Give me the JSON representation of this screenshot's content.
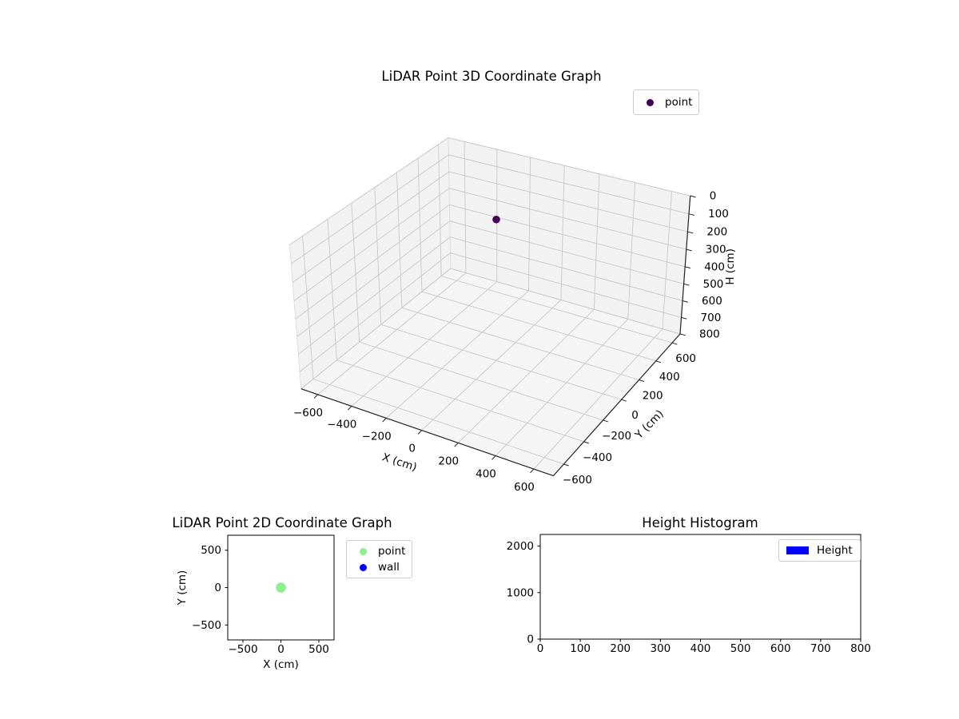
{
  "figure": {
    "background": "#ffffff",
    "description": "Figure with three subplots"
  },
  "colors": {
    "point3d": "#440154",
    "point2d": "#90ee90",
    "wall": "#0000ff",
    "height_bar": "#0000ff",
    "pane_wall": "#f2f2f2",
    "pane_floor": "#f5f5f5",
    "grid3d": "#c8c8c8",
    "pane_edge": "#dcdcdc",
    "axis_line": "#222222",
    "spine": "#000000",
    "legend_border": "#cccccc"
  },
  "chart_data": [
    {
      "type": "scatter3d",
      "title": "LiDAR Point 3D Coordinate Graph",
      "xlabel": "X (cm)",
      "ylabel": "Y (cm)",
      "zlabel": "H (cm)",
      "xlim": [
        -700,
        700
      ],
      "ylim": [
        -700,
        700
      ],
      "zlim": [
        0,
        800
      ],
      "zaxis_inverted": true,
      "xticks": [
        -600,
        -400,
        -200,
        0,
        200,
        400,
        600
      ],
      "yticks": [
        -600,
        -400,
        -200,
        0,
        200,
        400,
        600
      ],
      "zticks": [
        0,
        100,
        200,
        300,
        400,
        500,
        600,
        700,
        800
      ],
      "grid": true,
      "view": {
        "elev": 30,
        "azim": -60
      },
      "series": [
        {
          "name": "point",
          "color": "#440154",
          "marker": "circle",
          "points": [
            {
              "x": 0,
              "y": 0,
              "h": 0
            }
          ]
        }
      ],
      "legend": {
        "position": "upper-right",
        "entries": [
          {
            "label": "point",
            "color": "#440154",
            "marker": "circle"
          }
        ]
      }
    },
    {
      "type": "scatter",
      "title": "LiDAR Point 2D Coordinate Graph",
      "xlabel": "X (cm)",
      "ylabel": "Y (cm)",
      "xlim": [
        -700,
        700
      ],
      "ylim": [
        -700,
        700
      ],
      "xticks": [
        -500,
        0,
        500
      ],
      "yticks": [
        -500,
        0,
        500
      ],
      "grid": false,
      "series": [
        {
          "name": "point",
          "color": "#90ee90",
          "marker": "circle",
          "points": [
            {
              "x": 0,
              "y": 0
            }
          ]
        },
        {
          "name": "wall",
          "color": "#0000ff",
          "marker": "circle",
          "points": []
        }
      ],
      "legend": {
        "position": "outside-right",
        "entries": [
          {
            "label": "point",
            "color": "#90ee90",
            "marker": "circle"
          },
          {
            "label": "wall",
            "color": "#0000ff",
            "marker": "circle"
          }
        ]
      }
    },
    {
      "type": "bar",
      "title": "Height Histogram",
      "xlabel": "",
      "ylabel": "",
      "xlim": [
        0,
        800
      ],
      "ylim": [
        0,
        2250
      ],
      "xticks": [
        0,
        100,
        200,
        300,
        400,
        500,
        600,
        700,
        800
      ],
      "yticks": [
        0,
        1000,
        2000
      ],
      "grid": false,
      "series": [
        {
          "name": "Height",
          "color": "#0000ff",
          "values": []
        }
      ],
      "legend": {
        "position": "upper-right",
        "entries": [
          {
            "label": "Height",
            "color": "#0000ff",
            "marker": "square"
          }
        ]
      }
    }
  ]
}
